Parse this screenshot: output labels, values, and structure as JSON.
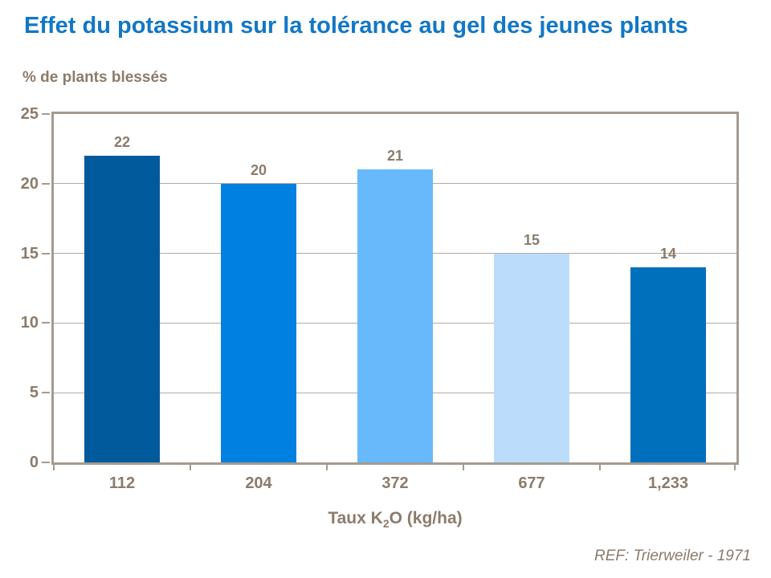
{
  "page": {
    "title": "Effet du potassium sur la tolérance au gel des jeunes plants",
    "footer_ref": "REF: Trierweiler - 1971"
  },
  "colors": {
    "title_blue": "#1277C6",
    "label_brown": "#8C7B6B",
    "axis_frame": "#A49B8F",
    "gridline": "#B4AAA2",
    "bar_colors": [
      "#005A9B",
      "#0081E2",
      "#67B9FB",
      "#BBDDFB",
      "#0070BD"
    ]
  },
  "chart_data": {
    "type": "bar",
    "title": "Effet du potassium sur la tolérance au gel des jeunes plants",
    "ylabel": "% de plants blessés",
    "xlabel": "Taux K2O (kg/ha)",
    "xlabel_parts": {
      "prefix": "Taux K",
      "sub": "2",
      "suffix": "O (kg/ha)"
    },
    "categories": [
      "112",
      "204",
      "372",
      "677",
      "1,233"
    ],
    "values": [
      22,
      20,
      21,
      15,
      14
    ],
    "ylim": [
      0,
      25
    ],
    "yticks": [
      0,
      5,
      10,
      15,
      20,
      25
    ],
    "grid": true,
    "legend": false,
    "annotation": "REF: Trierweiler - 1971"
  }
}
